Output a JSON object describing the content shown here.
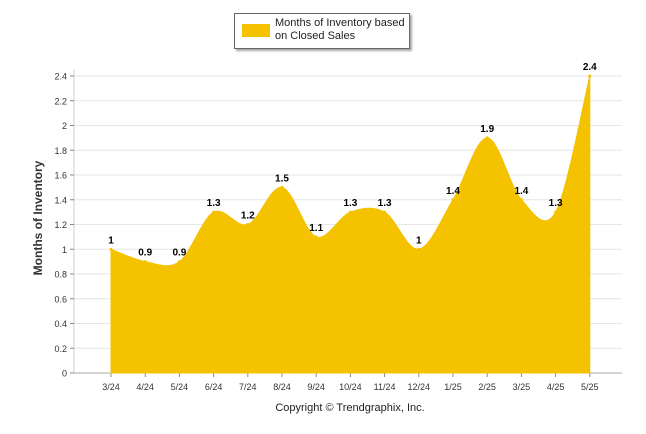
{
  "chart_data": {
    "type": "area",
    "categories": [
      "3/24",
      "4/24",
      "5/24",
      "6/24",
      "7/24",
      "8/24",
      "9/24",
      "10/24",
      "11/24",
      "12/24",
      "1/25",
      "2/25",
      "3/25",
      "4/25",
      "5/25"
    ],
    "series": [
      {
        "name": "Months of Inventory based on Closed Sales",
        "values": [
          1,
          0.9,
          0.9,
          1.3,
          1.2,
          1.5,
          1.1,
          1.3,
          1.3,
          1,
          1.4,
          1.9,
          1.4,
          1.3,
          2.4
        ],
        "data_labels": [
          "1",
          "0.9",
          "0.9",
          "1.3",
          "1.2",
          "1.5",
          "1.1",
          "1.3",
          "1.3",
          "1",
          "1.4",
          "1.9",
          "1.4",
          "1.3",
          "2.4"
        ]
      }
    ],
    "ylabel": "Months of Inventory",
    "xlabel": "",
    "ylim": [
      0,
      2.4
    ],
    "yticks": [
      "0",
      "0.2",
      "0.4",
      "0.6",
      "0.8",
      "1",
      "1.2",
      "1.4",
      "1.6",
      "1.8",
      "2",
      "2.2",
      "2.4"
    ],
    "grid": true,
    "legend_position": "top-center",
    "series_color": "#F5C200",
    "grid_color": "#e6e6e6"
  },
  "legend": {
    "label": "Months of Inventory based on Closed Sales"
  },
  "footer": {
    "copyright": "Copyright © Trendgraphix, Inc."
  }
}
